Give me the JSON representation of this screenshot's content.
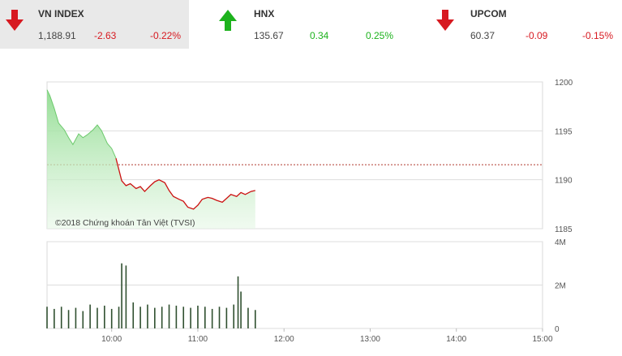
{
  "tickers": [
    {
      "name": "VN INDEX",
      "value": "1,188.91",
      "change": "-2.63",
      "percent": "-0.22%",
      "direction": "down",
      "arrow_icon": "arrow-down-icon"
    },
    {
      "name": "HNX",
      "value": "135.67",
      "change": "0.34",
      "percent": "0.25%",
      "direction": "up",
      "arrow_icon": "arrow-up-icon"
    },
    {
      "name": "UPCOM",
      "value": "60.37",
      "change": "-0.09",
      "percent": "-0.15%",
      "direction": "down",
      "arrow_icon": "arrow-down-icon"
    }
  ],
  "colors": {
    "down": "#d71920",
    "up": "#1db21d",
    "area_top": "#8fdc8f",
    "line": "#cc1111",
    "reference": "#b03a2e",
    "volume": "#2f4f2f"
  },
  "watermark": "©2018 Chứng khoán Tân Việt (TVSI)",
  "chart_data": {
    "type": "line",
    "x_ticks": [
      "10:00",
      "11:00",
      "12:00",
      "13:00",
      "14:00",
      "15:00"
    ],
    "y_ticks": [
      "1200",
      "1195",
      "1190",
      "1185"
    ],
    "ylim": [
      1185,
      1200
    ],
    "reference": 1191.54,
    "volume_ticks": [
      "4M",
      "2M",
      "0"
    ],
    "volume_ylim": [
      0,
      4000000
    ],
    "price": {
      "x": [
        "09:15",
        "09:17",
        "09:20",
        "09:23",
        "09:27",
        "09:30",
        "09:33",
        "09:37",
        "09:40",
        "09:43",
        "09:47",
        "09:50",
        "09:53",
        "09:57",
        "10:00",
        "10:03",
        "10:07",
        "10:10",
        "10:13",
        "10:17",
        "10:20",
        "10:23",
        "10:27",
        "10:30",
        "10:33",
        "10:37",
        "10:40",
        "10:43",
        "10:47",
        "10:50",
        "10:53",
        "10:57",
        "11:00",
        "11:03",
        "11:07",
        "11:10",
        "11:13",
        "11:17",
        "11:20",
        "11:23",
        "11:27",
        "11:30",
        "11:33",
        "11:37",
        "11:40"
      ],
      "y": [
        1199.2,
        1198.6,
        1197.3,
        1195.8,
        1195.1,
        1194.3,
        1193.6,
        1194.7,
        1194.3,
        1194.6,
        1195.1,
        1195.6,
        1195.0,
        1193.7,
        1193.2,
        1192.2,
        1189.9,
        1189.4,
        1189.6,
        1189.1,
        1189.3,
        1188.8,
        1189.4,
        1189.8,
        1190.0,
        1189.7,
        1188.9,
        1188.3,
        1188.0,
        1187.8,
        1187.2,
        1187.0,
        1187.4,
        1188.0,
        1188.2,
        1188.1,
        1187.9,
        1187.7,
        1188.1,
        1188.5,
        1188.3,
        1188.7,
        1188.5,
        1188.8,
        1188.9
      ]
    },
    "volume": {
      "x": [
        "09:15",
        "09:20",
        "09:25",
        "09:30",
        "09:35",
        "09:40",
        "09:45",
        "09:50",
        "09:55",
        "10:00",
        "10:05",
        "10:07",
        "10:10",
        "10:15",
        "10:20",
        "10:25",
        "10:30",
        "10:35",
        "10:40",
        "10:45",
        "10:50",
        "10:55",
        "11:00",
        "11:05",
        "11:10",
        "11:15",
        "11:20",
        "11:25",
        "11:28",
        "11:30",
        "11:35",
        "11:40"
      ],
      "values": [
        1000000,
        900000,
        1000000,
        850000,
        950000,
        800000,
        1100000,
        950000,
        1050000,
        900000,
        1000000,
        3000000,
        2900000,
        1200000,
        1000000,
        1100000,
        950000,
        1000000,
        1100000,
        1050000,
        1000000,
        950000,
        1050000,
        1000000,
        900000,
        1000000,
        950000,
        1100000,
        2400000,
        1700000,
        950000,
        850000
      ]
    }
  }
}
